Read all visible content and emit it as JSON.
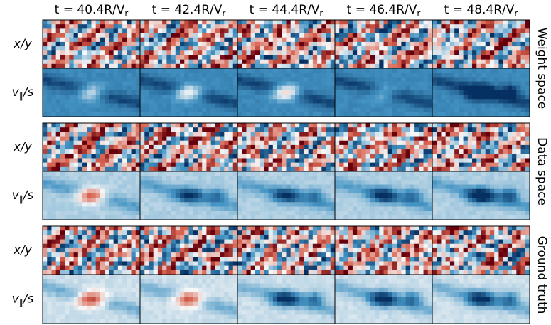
{
  "columns": [
    {
      "text": "t = 40.4R/V",
      "sub": "r"
    },
    {
      "text": "t = 42.4R/V",
      "sub": "r"
    },
    {
      "text": "t = 44.4R/V",
      "sub": "r"
    },
    {
      "text": "t = 46.4R/V",
      "sub": "r"
    },
    {
      "text": "t = 48.4R/V",
      "sub": "r"
    }
  ],
  "groups": [
    {
      "label": "Weight space",
      "rows": [
        {
          "main": "x/y"
        },
        {
          "main": "v",
          "sub": "∥",
          "rest": "/s"
        }
      ]
    },
    {
      "label": "Data space",
      "rows": [
        {
          "main": "x/y"
        },
        {
          "main": "v",
          "sub": "∥",
          "rest": "/s"
        }
      ]
    },
    {
      "label": "Ground truth",
      "rows": [
        {
          "main": "x/y"
        },
        {
          "main": "v",
          "sub": "∥",
          "rest": "/s"
        }
      ]
    }
  ]
}
